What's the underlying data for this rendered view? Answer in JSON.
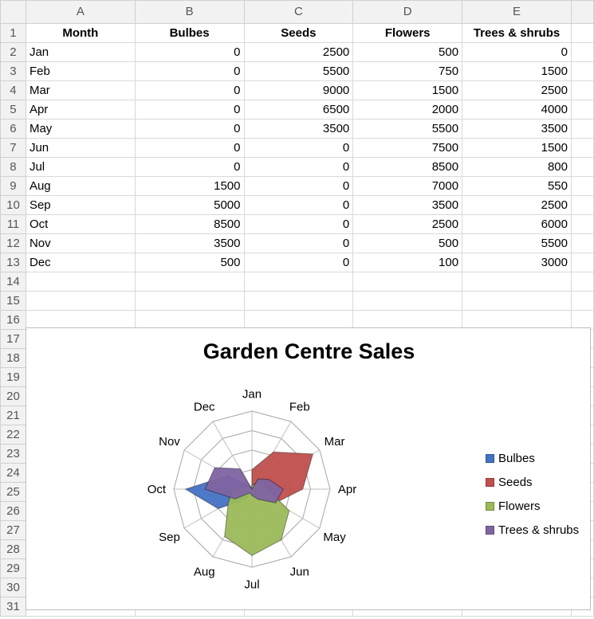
{
  "columns": [
    "A",
    "B",
    "C",
    "D",
    "E"
  ],
  "row_numbers": [
    "1",
    "2",
    "3",
    "4",
    "5",
    "6",
    "7",
    "8",
    "9",
    "10",
    "11",
    "12",
    "13",
    "14",
    "15",
    "16",
    "17",
    "18",
    "19",
    "20",
    "21",
    "22",
    "23",
    "24",
    "25",
    "26",
    "27",
    "28",
    "29",
    "30",
    "31"
  ],
  "header_row": [
    "Month",
    "Bulbes",
    "Seeds",
    "Flowers",
    "Trees & shrubs"
  ],
  "rows": [
    [
      "Jan",
      "0",
      "2500",
      "500",
      "0"
    ],
    [
      "Feb",
      "0",
      "5500",
      "750",
      "1500"
    ],
    [
      "Mar",
      "0",
      "9000",
      "1500",
      "2500"
    ],
    [
      "Apr",
      "0",
      "6500",
      "2000",
      "4000"
    ],
    [
      "May",
      "0",
      "3500",
      "5500",
      "3500"
    ],
    [
      "Jun",
      "0",
      "0",
      "7500",
      "1500"
    ],
    [
      "Jul",
      "0",
      "0",
      "8500",
      "800"
    ],
    [
      "Aug",
      "1500",
      "0",
      "7000",
      "550"
    ],
    [
      "Sep",
      "5000",
      "0",
      "3500",
      "2500"
    ],
    [
      "Oct",
      "8500",
      "0",
      "2500",
      "6000"
    ],
    [
      "Nov",
      "3500",
      "0",
      "500",
      "5500"
    ],
    [
      "Dec",
      "500",
      "0",
      "100",
      "3000"
    ]
  ],
  "chart_data": {
    "type": "radar-filled",
    "title": "Garden Centre Sales",
    "categories": [
      "Jan",
      "Feb",
      "Mar",
      "Apr",
      "May",
      "Jun",
      "Jul",
      "Aug",
      "Sep",
      "Oct",
      "Nov",
      "Dec"
    ],
    "rmax": 10000,
    "gridlines": 4,
    "legend_position": "right",
    "series": [
      {
        "name": "Bulbes",
        "color": "#4472c4",
        "values": [
          0,
          0,
          0,
          0,
          0,
          0,
          0,
          1500,
          5000,
          8500,
          3500,
          500
        ]
      },
      {
        "name": "Seeds",
        "color": "#c0504d",
        "values": [
          2500,
          5500,
          9000,
          6500,
          3500,
          0,
          0,
          0,
          0,
          0,
          0,
          0
        ]
      },
      {
        "name": "Flowers",
        "color": "#9bbb59",
        "values": [
          500,
          750,
          1500,
          2000,
          5500,
          7500,
          8500,
          7000,
          3500,
          2500,
          500,
          100
        ]
      },
      {
        "name": "Trees & shrubs",
        "color": "#8064a2",
        "values": [
          0,
          1500,
          2500,
          4000,
          3500,
          1500,
          800,
          550,
          2500,
          6000,
          5500,
          3000
        ]
      }
    ]
  }
}
